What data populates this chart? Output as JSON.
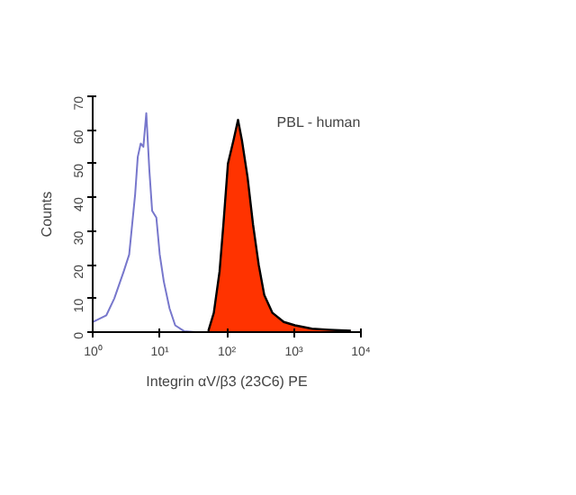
{
  "chart_data": {
    "type": "line",
    "xlabel": "Integrin αV/β3 (23C6) PE",
    "ylabel": "Counts",
    "log": "x",
    "xlim": [
      1,
      10000
    ],
    "ylim": [
      0,
      70
    ],
    "xticks": [
      {
        "value": 1,
        "label": "10⁰"
      },
      {
        "value": 10,
        "label": "10¹"
      },
      {
        "value": 100,
        "label": "10²"
      },
      {
        "value": 1000,
        "label": "10³"
      },
      {
        "value": 10000,
        "label": "10⁴"
      }
    ],
    "yticks": [
      0,
      10,
      20,
      30,
      40,
      50,
      60,
      70
    ],
    "grid": false,
    "annotations": [
      "PBL - human"
    ],
    "series": [
      {
        "color": "#7777cc",
        "x": [
          1,
          1.6,
          2.1,
          2.9,
          3.5,
          4.3,
          4.7,
          5.2,
          5.7,
          6.3,
          7.0,
          7.7,
          8.9,
          10,
          11.5,
          14,
          17,
          23,
          34
        ],
        "values": [
          3,
          5,
          10,
          18,
          23,
          41,
          52,
          56,
          55,
          65,
          48,
          36,
          34,
          23,
          15,
          7,
          2,
          0.3,
          0
        ]
      },
      {
        "type": "area",
        "color": "#ff3300",
        "x": [
          53,
          64,
          78,
          89,
          104,
          126,
          147,
          168,
          204,
          246,
          299,
          362,
          480,
          708,
          1040,
          1860,
          3300,
          7080
        ],
        "values": [
          0.3,
          5.7,
          18,
          32,
          50,
          57,
          63,
          57,
          46,
          32,
          20,
          11,
          5.7,
          3,
          2,
          1,
          0.7,
          0.4
        ]
      }
    ]
  }
}
